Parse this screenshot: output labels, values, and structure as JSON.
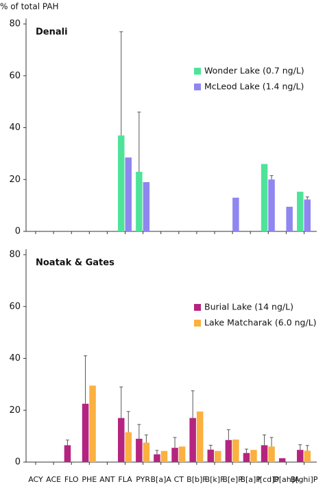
{
  "chart_data": [
    {
      "type": "bar",
      "title": "Denali",
      "ylabel": "% of total PAH",
      "ylim": [
        0,
        80
      ],
      "yticks": [
        0,
        20,
        40,
        60,
        80
      ],
      "series": [
        {
          "name": "Wonder Lake (0.7 ng/L)",
          "color": "#4fe39a",
          "values": [
            null,
            null,
            null,
            null,
            null,
            37,
            23,
            null,
            null,
            null,
            null,
            null,
            null,
            26,
            null,
            15.3
          ],
          "errors": [
            null,
            null,
            null,
            null,
            null,
            40,
            23,
            null,
            null,
            null,
            null,
            null,
            null,
            null,
            null,
            null
          ]
        },
        {
          "name": "McLeod Lake (1.4 ng/L)",
          "color": "#8f86f0",
          "values": [
            null,
            null,
            null,
            null,
            null,
            28.5,
            19,
            null,
            null,
            null,
            null,
            13,
            null,
            20,
            9.5,
            12.3
          ],
          "errors": [
            null,
            null,
            null,
            null,
            null,
            null,
            null,
            null,
            null,
            null,
            null,
            null,
            null,
            1.5,
            null,
            1
          ]
        }
      ]
    },
    {
      "type": "bar",
      "title": "Noatak & Gates",
      "categories": [
        "ACY",
        "ACE",
        "FLO",
        "PHE",
        "ANT",
        "FLA",
        "PYR",
        "B[a]A",
        "CT",
        "B[b]F",
        "B[k]F",
        "B[e]P",
        "B[a]P",
        "I[cd]P",
        "D[ah]A",
        "B[ghi]P"
      ],
      "ylim": [
        0,
        80
      ],
      "yticks": [
        0,
        20,
        40,
        60,
        80
      ],
      "series": [
        {
          "name": "Burial Lake (14 ng/L)",
          "color": "#b5247f",
          "values": [
            null,
            null,
            6.5,
            22.5,
            null,
            17,
            9,
            3,
            5.5,
            17,
            4.8,
            8.5,
            3.5,
            6.5,
            1.5,
            4.7
          ],
          "errors": [
            null,
            null,
            2,
            18.5,
            null,
            12,
            5.5,
            1.5,
            4,
            10.5,
            1.7,
            4,
            1.5,
            4,
            null,
            2
          ]
        },
        {
          "name": "Lake Matcharak (6.0 ng/L)",
          "color": "#fbb040",
          "values": [
            null,
            null,
            null,
            29.5,
            null,
            11.5,
            7.5,
            4.3,
            6,
            19.5,
            4.3,
            8.7,
            4.7,
            6,
            null,
            4.4
          ],
          "errors": [
            null,
            null,
            null,
            null,
            null,
            8,
            3,
            null,
            null,
            null,
            null,
            null,
            null,
            3.5,
            null,
            2
          ]
        }
      ]
    }
  ]
}
